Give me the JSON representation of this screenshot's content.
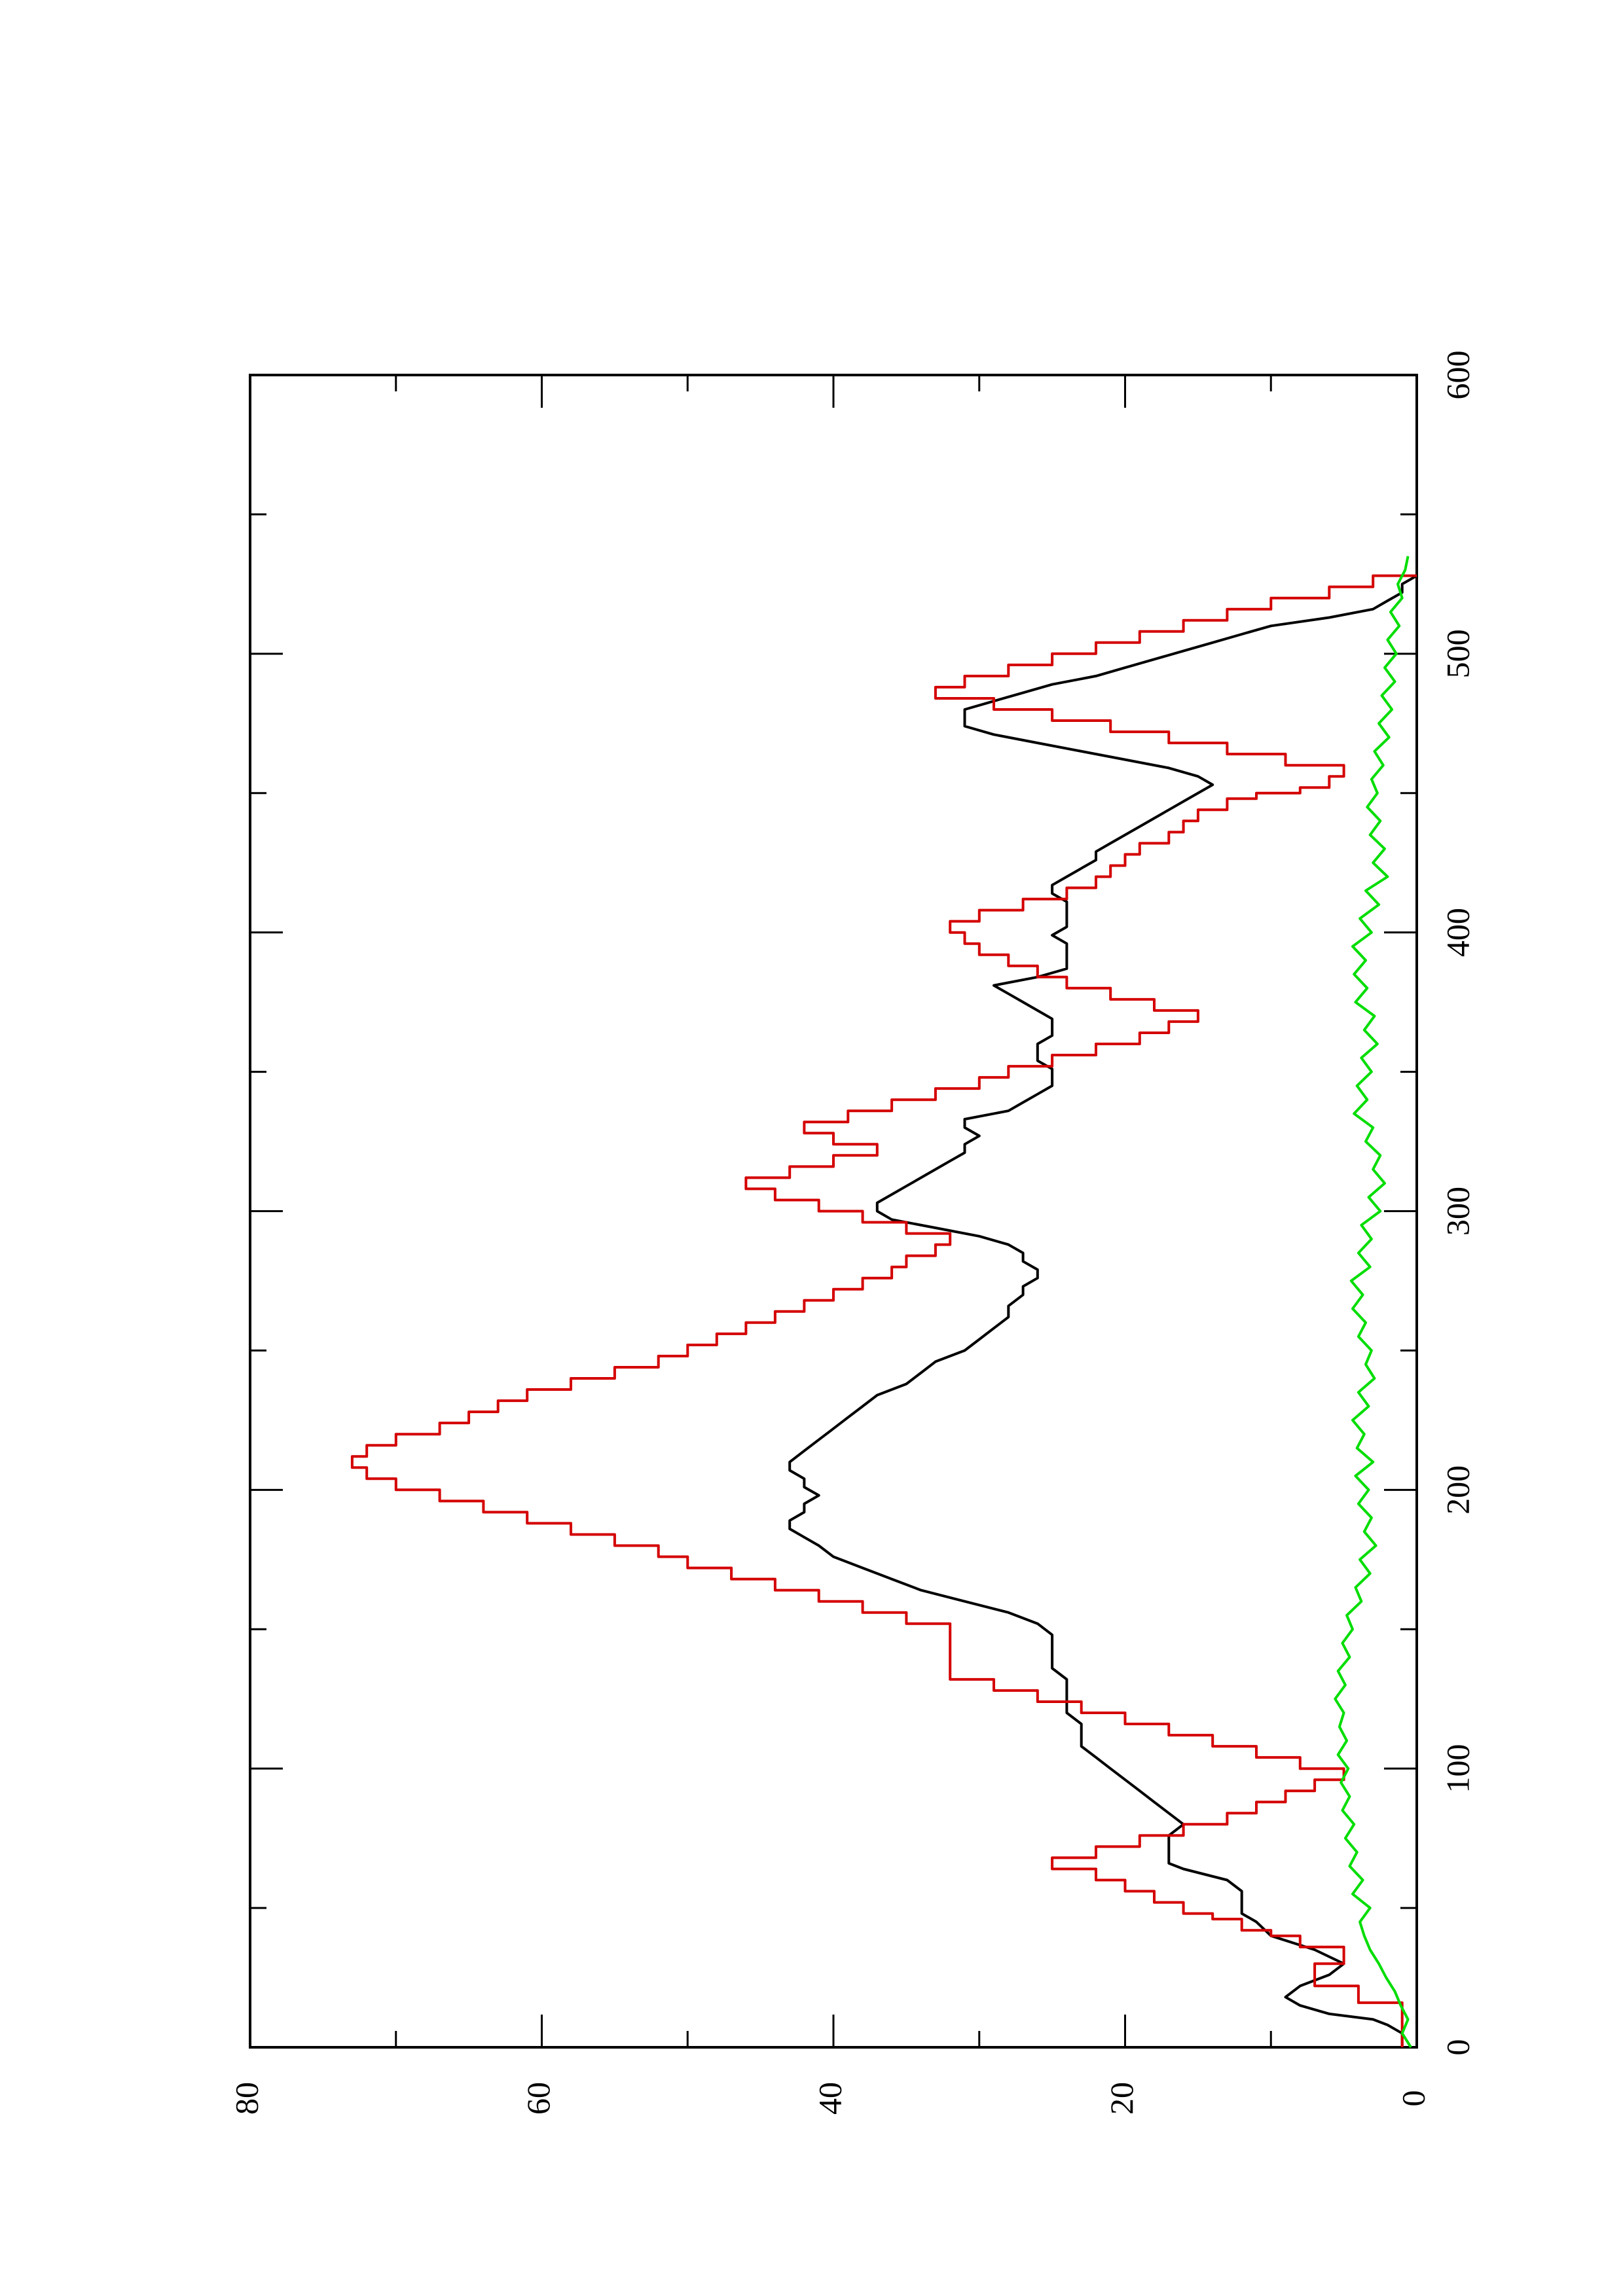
{
  "chart_data": {
    "type": "line",
    "orientation": "rotated-90",
    "xlabel": "",
    "ylabel": "",
    "xlim": [
      0,
      600
    ],
    "ylim": [
      0,
      80
    ],
    "x_ticks": [
      0,
      100,
      200,
      300,
      400,
      500,
      600
    ],
    "y_ticks": [
      0,
      20,
      40,
      60,
      80
    ],
    "grid": false,
    "colors": {
      "black": "#000000",
      "red": "#d40000",
      "green": "#00dd00"
    },
    "series": [
      {
        "color": "#000000",
        "step": false,
        "x": [
          0,
          5,
          8,
          10,
          12,
          15,
          18,
          22,
          26,
          30,
          35,
          40,
          45,
          48,
          52,
          56,
          60,
          64,
          66,
          70,
          73,
          76,
          80,
          84,
          88,
          92,
          96,
          100,
          104,
          108,
          112,
          116,
          120,
          124,
          128,
          132,
          136,
          140,
          144,
          148,
          152,
          156,
          160,
          164,
          168,
          172,
          176,
          180,
          183,
          186,
          189,
          192,
          195,
          198,
          201,
          204,
          207,
          210,
          214,
          218,
          222,
          226,
          230,
          234,
          238,
          242,
          246,
          250,
          254,
          258,
          262,
          266,
          270,
          273,
          276,
          279,
          282,
          285,
          288,
          291,
          294,
          297,
          300,
          303,
          306,
          309,
          312,
          315,
          318,
          321,
          324,
          327,
          330,
          333,
          336,
          339,
          342,
          345,
          348,
          351,
          354,
          357,
          360,
          363,
          366,
          369,
          372,
          375,
          378,
          381,
          384,
          387,
          390,
          393,
          396,
          399,
          402,
          405,
          408,
          411,
          414,
          417,
          420,
          423,
          426,
          429,
          432,
          435,
          438,
          441,
          444,
          447,
          450,
          453,
          456,
          459,
          462,
          465,
          468,
          471,
          474,
          477,
          480,
          483,
          486,
          489,
          492,
          495,
          498,
          501,
          504,
          507,
          510,
          513,
          516,
          519,
          522,
          525,
          528,
          530
        ],
        "y": [
          1,
          1,
          2,
          3,
          6,
          8,
          9,
          8,
          6,
          5,
          7,
          10,
          11,
          12,
          12,
          12,
          13,
          16,
          17,
          17,
          17,
          17,
          16,
          17,
          18,
          19,
          20,
          21,
          22,
          23,
          23,
          23,
          24,
          24,
          24,
          24,
          25,
          25,
          25,
          25,
          26,
          28,
          31,
          34,
          36,
          38,
          40,
          41,
          42,
          43,
          43,
          42,
          42,
          41,
          42,
          42,
          43,
          43,
          42,
          41,
          40,
          39,
          38,
          37,
          35,
          34,
          33,
          31,
          30,
          29,
          28,
          28,
          27,
          27,
          26,
          26,
          27,
          27,
          28,
          30,
          33,
          36,
          37,
          37,
          36,
          35,
          34,
          33,
          32,
          31,
          31,
          30,
          31,
          31,
          28,
          27,
          26,
          25,
          25,
          25,
          26,
          26,
          26,
          25,
          25,
          25,
          26,
          27,
          28,
          29,
          26,
          24,
          24,
          24,
          24,
          25,
          24,
          24,
          24,
          24,
          25,
          25,
          24,
          23,
          22,
          22,
          21,
          20,
          19,
          18,
          17,
          16,
          15,
          14,
          15,
          17,
          20,
          23,
          26,
          29,
          31,
          31,
          31,
          29,
          27,
          25,
          22,
          20,
          18,
          16,
          14,
          12,
          10,
          6,
          3,
          2,
          1,
          1,
          0,
          0
        ]
      },
      {
        "color": "#d40000",
        "step": true,
        "x": [
          0,
          5,
          10,
          16,
          22,
          25,
          30,
          33,
          36,
          40,
          42,
          46,
          48,
          52,
          56,
          60,
          64,
          68,
          72,
          76,
          80,
          84,
          88,
          92,
          96,
          100,
          104,
          108,
          112,
          116,
          120,
          124,
          128,
          132,
          136,
          140,
          144,
          148,
          152,
          156,
          160,
          164,
          168,
          172,
          176,
          180,
          184,
          188,
          192,
          196,
          200,
          204,
          208,
          212,
          216,
          220,
          224,
          228,
          232,
          236,
          240,
          244,
          248,
          252,
          256,
          260,
          264,
          268,
          272,
          276,
          280,
          284,
          288,
          292,
          296,
          300,
          304,
          308,
          312,
          316,
          320,
          324,
          328,
          332,
          336,
          340,
          344,
          348,
          352,
          356,
          360,
          364,
          368,
          372,
          376,
          380,
          384,
          388,
          392,
          396,
          400,
          404,
          408,
          412,
          416,
          420,
          424,
          428,
          432,
          436,
          440,
          444,
          448,
          450,
          452,
          456,
          460,
          464,
          468,
          472,
          476,
          480,
          484,
          488,
          492,
          496,
          500,
          504,
          508,
          512,
          516,
          520,
          524,
          528
        ],
        "y": [
          1,
          1,
          1,
          4,
          7,
          7,
          5,
          5,
          8,
          10,
          12,
          14,
          16,
          18,
          20,
          22,
          25,
          22,
          19,
          16,
          13,
          11,
          9,
          7,
          5,
          8,
          11,
          14,
          17,
          20,
          23,
          26,
          29,
          32,
          32,
          32,
          32,
          32,
          35,
          38,
          41,
          44,
          47,
          50,
          52,
          55,
          58,
          61,
          64,
          67,
          70,
          72,
          73,
          72,
          70,
          67,
          65,
          63,
          61,
          58,
          55,
          52,
          50,
          48,
          46,
          44,
          42,
          40,
          38,
          36,
          35,
          33,
          32,
          35,
          38,
          41,
          44,
          46,
          43,
          40,
          37,
          40,
          42,
          39,
          36,
          33,
          30,
          28,
          25,
          22,
          19,
          17,
          15,
          18,
          21,
          24,
          26,
          28,
          30,
          31,
          32,
          30,
          27,
          24,
          22,
          21,
          20,
          19,
          17,
          16,
          15,
          13,
          11,
          8,
          6,
          5,
          9,
          13,
          17,
          21,
          25,
          29,
          33,
          31,
          28,
          25,
          22,
          19,
          16,
          13,
          10,
          6,
          3,
          0
        ]
      },
      {
        "color": "#00dd00",
        "step": false,
        "x": [
          0,
          5,
          10,
          15,
          20,
          25,
          30,
          35,
          40,
          45,
          50,
          55,
          60,
          65,
          70,
          75,
          80,
          85,
          90,
          95,
          100,
          105,
          110,
          115,
          120,
          125,
          130,
          135,
          140,
          145,
          150,
          155,
          160,
          165,
          170,
          175,
          180,
          185,
          190,
          195,
          200,
          205,
          210,
          215,
          220,
          225,
          230,
          235,
          240,
          245,
          250,
          255,
          260,
          265,
          270,
          275,
          280,
          285,
          290,
          295,
          300,
          305,
          310,
          315,
          320,
          325,
          330,
          335,
          340,
          345,
          350,
          355,
          360,
          365,
          370,
          375,
          380,
          385,
          390,
          395,
          400,
          405,
          410,
          415,
          420,
          425,
          430,
          435,
          440,
          445,
          450,
          455,
          460,
          465,
          470,
          475,
          480,
          485,
          490,
          495,
          500,
          505,
          510,
          515,
          520,
          525,
          530,
          535
        ],
        "y": [
          0.4,
          1,
          0.6,
          1.1,
          1.5,
          2.1,
          2.6,
          3.2,
          3.6,
          3.9,
          3.2,
          4.4,
          3.7,
          4.6,
          4.1,
          4.9,
          4.3,
          5.1,
          4.6,
          5.2,
          4.7,
          5.4,
          4.8,
          5.3,
          5.0,
          5.6,
          4.9,
          5.4,
          4.6,
          5.1,
          4.4,
          4.8,
          3.8,
          4.2,
          3.2,
          3.9,
          2.8,
          3.6,
          3.1,
          4.0,
          3.3,
          4.2,
          3.0,
          4.1,
          3.6,
          4.4,
          3.3,
          4.0,
          2.9,
          3.5,
          3.1,
          4.0,
          3.5,
          4.4,
          3.7,
          4.5,
          3.2,
          4.0,
          3.1,
          3.8,
          2.5,
          3.3,
          2.2,
          3.0,
          2.5,
          3.5,
          3.0,
          4.3,
          3.4,
          4.1,
          3.1,
          3.8,
          2.7,
          3.6,
          2.9,
          4.2,
          3.4,
          4.3,
          3.5,
          4.4,
          3.1,
          3.9,
          2.6,
          3.5,
          2.0,
          3.0,
          2.2,
          3.2,
          2.5,
          3.4,
          2.7,
          3.1,
          2.3,
          2.9,
          1.9,
          2.6,
          1.7,
          2.4,
          1.5,
          2.2,
          1.4,
          2.0,
          1.2,
          1.8,
          1.0,
          1.3,
          0.8,
          0.6
        ]
      }
    ]
  }
}
